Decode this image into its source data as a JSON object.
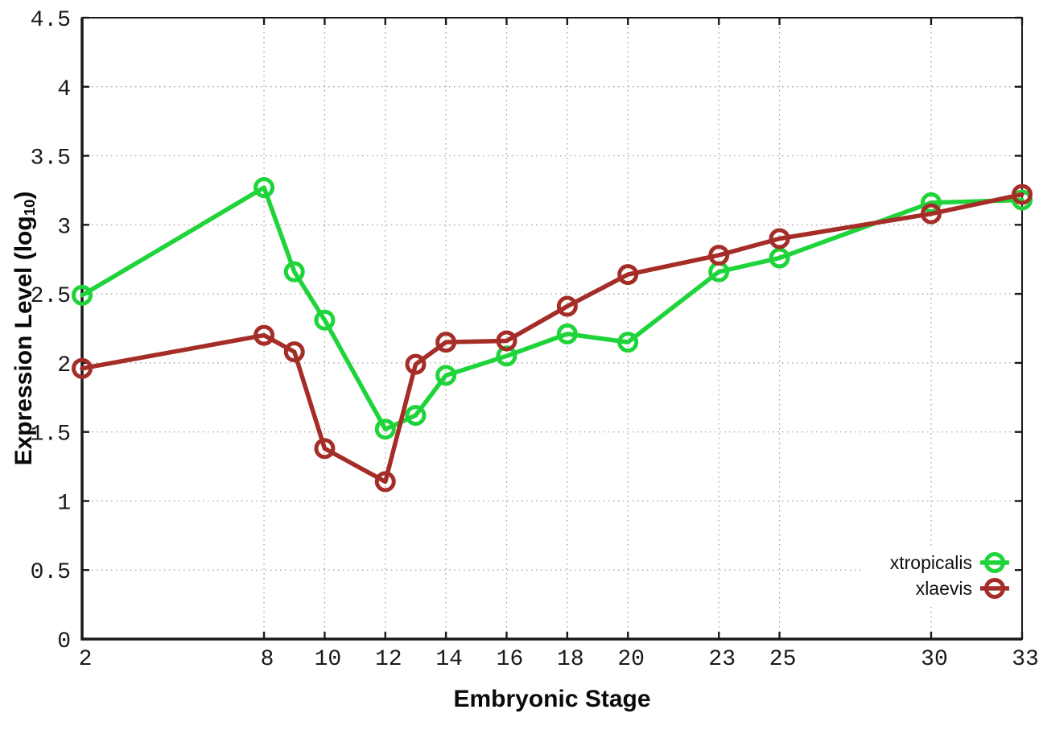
{
  "chart_data": {
    "type": "line",
    "title": "",
    "xlabel": "Embryonic Stage",
    "ylabel": "Expression Level (log10)",
    "ylabel_parts": {
      "main": "Expression Level (log",
      "sub": "10",
      "suffix": ")"
    },
    "x": [
      2,
      8,
      9,
      10,
      12,
      13,
      14,
      16,
      18,
      20,
      23,
      25,
      30,
      33
    ],
    "series": [
      {
        "name": "xtropicalis",
        "color": "#1ed43a",
        "values": [
          2.49,
          3.27,
          2.66,
          2.31,
          1.52,
          1.62,
          1.91,
          2.05,
          2.21,
          2.15,
          2.66,
          2.76,
          3.16,
          3.18
        ]
      },
      {
        "name": "xlaevis",
        "color": "#a52d28",
        "values": [
          1.96,
          2.2,
          2.08,
          1.38,
          1.14,
          1.99,
          2.15,
          2.16,
          2.41,
          2.64,
          2.78,
          2.9,
          3.08,
          3.22
        ]
      }
    ],
    "x_range": [
      2,
      33
    ],
    "y_range": [
      0,
      4.5
    ],
    "x_ticks": [
      2,
      8,
      10,
      12,
      14,
      16,
      18,
      20,
      23,
      25,
      30,
      33
    ],
    "x_tick_labels": [
      "2",
      "8",
      "10",
      "12",
      "14",
      "16",
      "18",
      "20",
      "23",
      "25",
      "30",
      "33"
    ],
    "y_ticks": [
      0,
      0.5,
      1,
      1.5,
      2,
      2.5,
      3,
      3.5,
      4,
      4.5
    ],
    "y_tick_labels": [
      "0",
      "0.5",
      "1",
      "1.5",
      "2",
      "2.5",
      "3",
      "3.5",
      "4",
      "4.5"
    ],
    "grid": true,
    "grid_style": "dotted",
    "legend_position": "bottom-right-inside",
    "legend_entries": [
      "xtropicalis",
      "xlaevis"
    ],
    "marker": "open-circle",
    "colors": {
      "axis": "#1a1a1a",
      "grid": "#9a9a9a",
      "background": "#ffffff"
    }
  }
}
